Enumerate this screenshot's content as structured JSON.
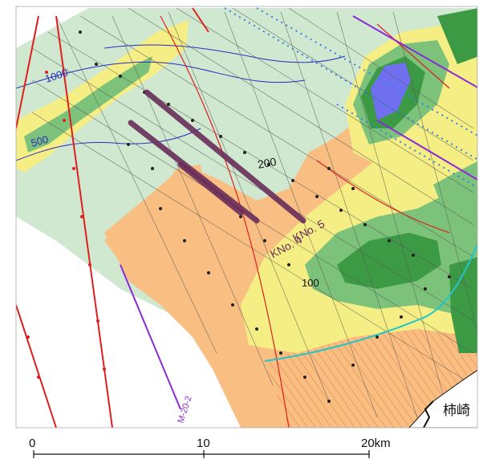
{
  "map": {
    "colors": {
      "light_green": "#cfe8cf",
      "mid_green": "#7cc27a",
      "dark_green": "#3c9a45",
      "yellow": "#f5ee84",
      "orange": "#f8be82",
      "blue_zone": "#6f6ff0",
      "survey_line_dark": "#6a2e5a",
      "cyan_boundary": "#20c6c8",
      "red_line": "#dd1f1f",
      "blue_line": "#3380e0",
      "purple_line": "#8a2ad8",
      "contour": "#2a2ac0"
    },
    "contour_labels": [
      "1000",
      "500",
      "200",
      "100"
    ],
    "survey_lines": [
      {
        "id": "kno5",
        "label": "KNo. 5"
      },
      {
        "id": "kno4",
        "label": "KNo. 4"
      }
    ],
    "profile_label": "M-20-2",
    "place_name": "柿崎",
    "scale_bar": {
      "ticks": [
        "0",
        "10",
        "20km"
      ]
    }
  }
}
